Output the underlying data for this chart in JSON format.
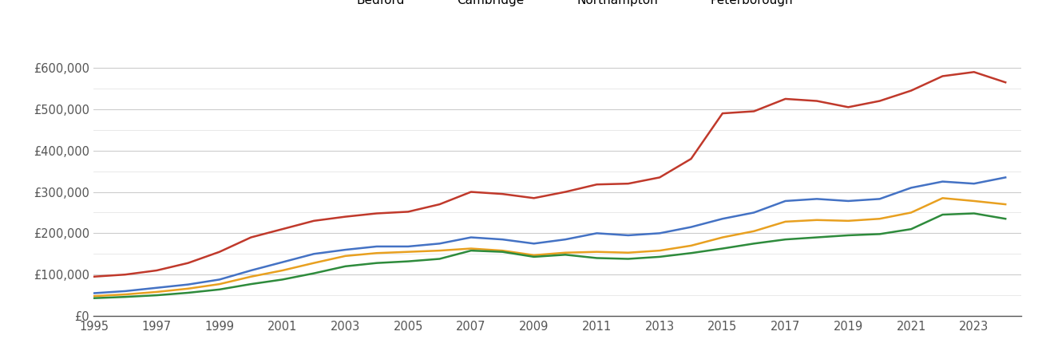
{
  "years": [
    1995,
    1996,
    1997,
    1998,
    1999,
    2000,
    2001,
    2002,
    2003,
    2004,
    2005,
    2006,
    2007,
    2008,
    2009,
    2010,
    2011,
    2012,
    2013,
    2014,
    2015,
    2016,
    2017,
    2018,
    2019,
    2020,
    2021,
    2022,
    2023,
    2024
  ],
  "Bedford": [
    55000,
    60000,
    68000,
    76000,
    88000,
    110000,
    130000,
    150000,
    160000,
    168000,
    168000,
    175000,
    190000,
    185000,
    175000,
    185000,
    200000,
    195000,
    200000,
    215000,
    235000,
    250000,
    278000,
    283000,
    278000,
    283000,
    310000,
    325000,
    320000,
    335000
  ],
  "Cambridge": [
    95000,
    100000,
    110000,
    128000,
    155000,
    190000,
    210000,
    230000,
    240000,
    248000,
    252000,
    270000,
    300000,
    295000,
    285000,
    300000,
    318000,
    320000,
    335000,
    380000,
    490000,
    495000,
    525000,
    520000,
    505000,
    520000,
    545000,
    580000,
    590000,
    565000
  ],
  "Northampton": [
    48000,
    52000,
    58000,
    66000,
    77000,
    95000,
    110000,
    128000,
    145000,
    152000,
    155000,
    158000,
    163000,
    158000,
    147000,
    153000,
    155000,
    153000,
    158000,
    170000,
    190000,
    205000,
    228000,
    232000,
    230000,
    235000,
    250000,
    285000,
    278000,
    270000
  ],
  "Peterborough": [
    43000,
    46000,
    50000,
    56000,
    64000,
    77000,
    88000,
    103000,
    120000,
    128000,
    132000,
    138000,
    158000,
    155000,
    143000,
    148000,
    140000,
    138000,
    143000,
    152000,
    163000,
    175000,
    185000,
    190000,
    195000,
    198000,
    210000,
    245000,
    248000,
    235000
  ],
  "colors": {
    "Bedford": "#4472C4",
    "Cambridge": "#C0392B",
    "Northampton": "#E8A020",
    "Peterborough": "#2E8B3C"
  },
  "ylim": [
    0,
    660000
  ],
  "ytick_major": [
    0,
    100000,
    200000,
    300000,
    400000,
    500000,
    600000
  ],
  "ytick_minor": [
    50000,
    150000,
    250000,
    350000,
    450000,
    550000
  ],
  "xlim_left": 1995,
  "xlim_right": 2024.5,
  "xticks": [
    1995,
    1997,
    1999,
    2001,
    2003,
    2005,
    2007,
    2009,
    2011,
    2013,
    2015,
    2017,
    2019,
    2021,
    2023
  ],
  "background_color": "#ffffff",
  "major_grid_color": "#cccccc",
  "minor_grid_color": "#e5e5e5",
  "tick_color": "#555555",
  "spine_color": "#555555"
}
